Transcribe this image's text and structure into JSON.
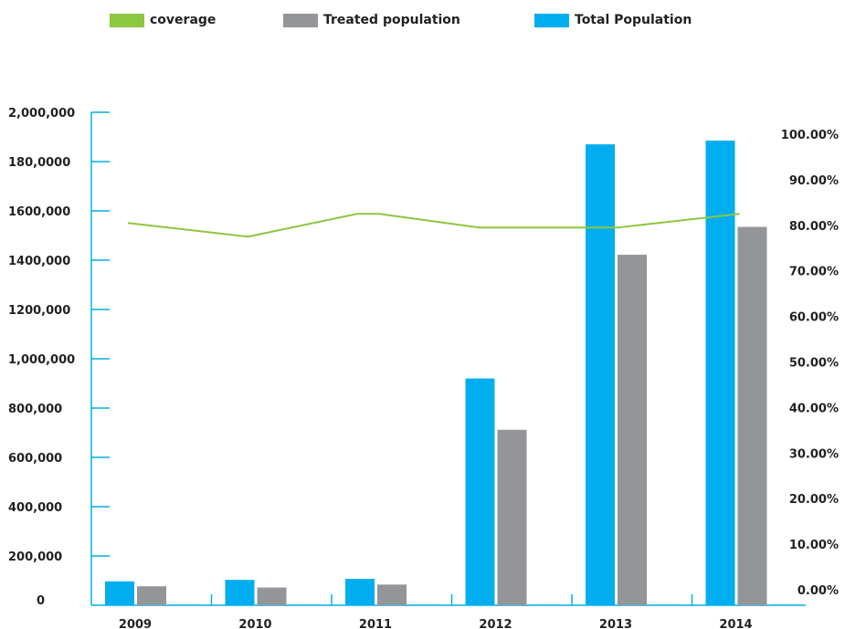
{
  "legend": {
    "items": [
      {
        "label": "coverage",
        "color": "#8dc63f"
      },
      {
        "label": "Treated population",
        "color": "#939598"
      },
      {
        "label": "Total Population",
        "color": "#00aeef"
      }
    ]
  },
  "chart_data": {
    "type": "bar",
    "categories": [
      "2009",
      "2010",
      "2011",
      "2012",
      "2013",
      "2014"
    ],
    "series": [
      {
        "name": "Total Population",
        "type": "bar",
        "color": "#00aeef",
        "values": [
          97000,
          103000,
          107000,
          920000,
          1870000,
          1885000
        ]
      },
      {
        "name": "Treated population",
        "type": "bar",
        "color": "#939598",
        "values": [
          77000,
          72000,
          84000,
          712000,
          1422000,
          1535000
        ]
      },
      {
        "name": "coverage",
        "type": "line",
        "axis": "right",
        "color": "#8dc63f",
        "values": [
          80.5,
          77.5,
          82.5,
          79.5,
          79.5,
          82.5
        ]
      }
    ],
    "y_left": {
      "ylim": [
        0,
        2000000
      ],
      "tick_labels": [
        "0",
        "200,000",
        "400,000",
        "600,000",
        "800,000",
        "1,000,000",
        "1200,000",
        "1400,000",
        "1600,000",
        "180,0000",
        "2,000,000"
      ]
    },
    "y_right": {
      "ylim": [
        -7,
        107
      ],
      "ticks": [
        0,
        10,
        20,
        30,
        40,
        50,
        60,
        70,
        80,
        90,
        100
      ],
      "tick_labels": [
        "0.00%",
        "10.00%",
        "20.00%",
        "30.00%",
        "40.00%",
        "50.00%",
        "60.00%",
        "70.00%",
        "80.00%",
        "90.00%",
        "100.00%"
      ]
    },
    "legend": "top",
    "grid": false
  }
}
